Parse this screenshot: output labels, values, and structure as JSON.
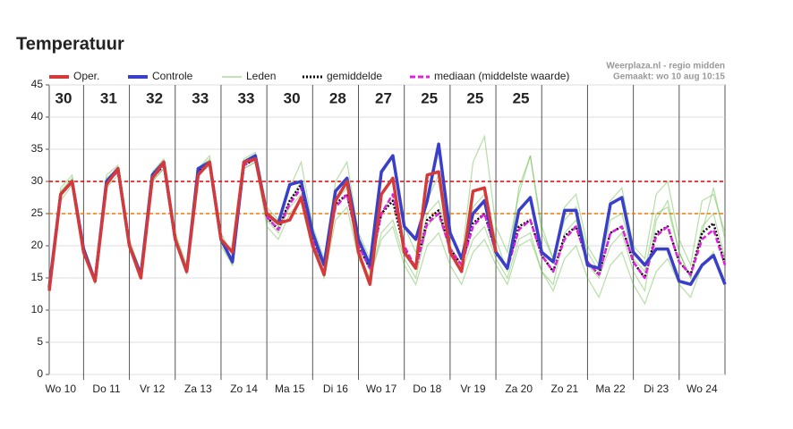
{
  "chart_data": {
    "type": "line",
    "title": "Temperatuur",
    "credit": [
      "Weerplaza.nl - regio midden",
      "Gemaakt: wo 10 aug 10:15"
    ],
    "x": [
      0.25,
      0.5,
      0.75,
      1,
      1.25,
      1.5,
      1.75,
      2,
      2.25,
      2.5,
      2.75,
      3,
      3.25,
      3.5,
      3.75,
      4,
      4.25,
      4.5,
      4.75,
      5,
      5.25,
      5.5,
      5.75,
      6,
      6.25,
      6.5,
      6.75,
      7,
      7.25,
      7.5,
      7.75,
      8,
      8.25,
      8.5,
      8.75,
      9,
      9.25,
      9.5,
      9.75,
      10,
      10.25,
      10.5,
      10.75,
      11,
      11.25,
      11.5,
      11.75,
      12,
      12.25,
      12.5,
      12.75,
      13,
      13.25,
      13.5,
      13.75,
      14,
      14.25,
      14.5,
      14.75,
      15
    ],
    "xlim": [
      0.25,
      15
    ],
    "xticks": [
      {
        "value": 0.5,
        "label": "Wo 10"
      },
      {
        "value": 1.5,
        "label": "Do 11"
      },
      {
        "value": 2.5,
        "label": "Vr 12"
      },
      {
        "value": 3.5,
        "label": "Za 13"
      },
      {
        "value": 4.5,
        "label": "Zo 14"
      },
      {
        "value": 5.5,
        "label": "Ma 15"
      },
      {
        "value": 6.5,
        "label": "Di 16"
      },
      {
        "value": 7.5,
        "label": "Wo 17"
      },
      {
        "value": 8.5,
        "label": "Do 18"
      },
      {
        "value": 9.5,
        "label": "Vr 19"
      },
      {
        "value": 10.5,
        "label": "Za 20"
      },
      {
        "value": 11.5,
        "label": "Zo 21"
      },
      {
        "value": 12.5,
        "label": "Ma 22"
      },
      {
        "value": 13.5,
        "label": "Di 23"
      },
      {
        "value": 14.5,
        "label": "Wo 24"
      }
    ],
    "xgrid": [
      1,
      2,
      3,
      4,
      5,
      6,
      7,
      8,
      9,
      10,
      11,
      12,
      13,
      14
    ],
    "ylim": [
      0,
      45
    ],
    "yticks": [
      0,
      5,
      10,
      15,
      20,
      25,
      30,
      35,
      40,
      45
    ],
    "reference_lines": [
      {
        "value": 30,
        "color": "#e00000"
      },
      {
        "value": 25,
        "color": "#f07800"
      }
    ],
    "max_labels": {
      "x": [
        0,
        1,
        2,
        3,
        4,
        5,
        6,
        7,
        8,
        9,
        10
      ],
      "values": [
        30,
        31,
        32,
        33,
        33,
        30,
        28,
        27,
        25,
        25,
        25
      ],
      "color": "#e00000"
    },
    "series": [
      {
        "name": "Leden",
        "color": "#5cb83a",
        "members": [
          [
            14,
            29,
            31,
            20,
            15,
            31,
            32.5,
            21,
            16,
            31.5,
            33.5,
            22,
            17,
            32,
            34,
            22,
            18.5,
            33.5,
            34.5,
            26,
            24,
            29,
            33,
            23,
            18,
            30,
            33,
            22,
            18,
            31,
            34,
            23,
            19,
            27,
            31,
            22,
            18,
            33,
            37,
            23,
            19,
            28,
            34,
            23,
            18,
            26,
            28,
            20,
            17,
            27,
            29,
            20,
            18,
            28,
            30,
            21,
            17,
            27,
            28,
            22
          ],
          [
            13,
            27,
            29.5,
            19,
            14,
            29,
            31,
            19.5,
            15,
            30,
            32,
            20.5,
            15.5,
            31,
            32.5,
            20,
            17,
            32,
            33,
            23,
            21,
            25,
            27,
            20,
            15,
            24,
            26,
            18,
            15,
            21,
            23,
            17,
            14,
            20,
            22,
            17,
            14,
            19,
            21,
            17,
            14,
            20,
            21,
            16,
            13,
            18,
            20,
            15,
            12,
            17,
            19,
            14,
            11,
            16,
            18,
            14,
            12,
            17,
            19,
            14
          ],
          [
            13.5,
            28.5,
            30.5,
            19.5,
            14.5,
            30.5,
            32,
            20,
            15,
            31,
            33,
            21,
            16,
            32,
            33.5,
            21,
            18,
            33,
            34,
            25,
            23,
            27,
            30,
            21,
            16,
            27,
            29,
            20,
            16,
            25,
            28,
            19,
            17,
            25,
            27,
            20,
            17,
            26,
            28,
            21,
            16,
            29,
            34,
            22,
            18,
            24,
            26,
            19,
            16,
            24,
            25,
            18,
            16,
            25,
            26,
            19,
            15,
            23,
            25,
            18
          ],
          [
            13,
            28,
            30,
            19,
            14.5,
            29.5,
            31.5,
            20,
            15.5,
            30,
            32,
            21,
            16.5,
            31,
            33,
            21.5,
            17,
            32,
            33,
            24,
            22,
            26,
            28,
            20,
            17,
            26,
            28,
            19,
            15,
            22,
            24,
            18,
            15,
            23,
            25,
            19,
            16,
            21,
            23,
            18,
            15,
            21,
            22,
            16,
            14,
            22,
            24,
            17,
            15,
            20,
            22,
            16,
            13,
            24,
            27,
            19,
            15,
            22,
            29,
            21
          ]
        ]
      },
      {
        "name": "gemiddelde",
        "color": "#000000",
        "dash": "2 2",
        "values": [
          13.5,
          28,
          30,
          19.5,
          14.5,
          30,
          31.5,
          20,
          15.5,
          30.5,
          32.5,
          21,
          16,
          31.5,
          33,
          21,
          17.5,
          32.5,
          33.5,
          24.5,
          22.5,
          27,
          29.5,
          21,
          17,
          26.5,
          28,
          20,
          16.5,
          25,
          27,
          19.5,
          16.5,
          24,
          25.5,
          19.5,
          17,
          23.5,
          25,
          19,
          16.5,
          23,
          24,
          18.5,
          16,
          21.5,
          23,
          17.5,
          15.5,
          22,
          23,
          17.5,
          15,
          22,
          23,
          17.5,
          15.5,
          22,
          23.5,
          17
        ]
      },
      {
        "name": "mediaan (middelste waarde)",
        "color": "#e020e0",
        "dash": "6 3",
        "values": [
          13.5,
          28,
          30,
          19.5,
          14.5,
          30,
          31.5,
          20,
          15.5,
          30.5,
          32.5,
          21,
          16,
          31.5,
          33,
          21,
          17.5,
          32.5,
          33.5,
          24.5,
          22.5,
          26.5,
          29,
          21,
          17,
          26,
          28,
          20,
          16.5,
          25,
          28,
          20,
          16.5,
          23.5,
          25,
          19.5,
          17,
          23,
          25,
          19,
          16.5,
          22.5,
          24,
          18.5,
          16,
          21,
          23,
          17.5,
          15.5,
          22,
          23,
          17.5,
          15,
          21.5,
          23,
          17.5,
          15.5,
          21,
          22.5,
          17
        ]
      },
      {
        "name": "Controle",
        "color": "#3a3fc8",
        "values": [
          13.5,
          28,
          30,
          19.5,
          14.5,
          30,
          32,
          20,
          15.5,
          31,
          33,
          21,
          16,
          32,
          33,
          21,
          17.5,
          33,
          34,
          25,
          23.5,
          29.5,
          30,
          22,
          17,
          28.5,
          30.5,
          21,
          17,
          31.5,
          34,
          23,
          21,
          27,
          35.8,
          22,
          18,
          25,
          27,
          19,
          16.5,
          25.5,
          27.5,
          19,
          17.5,
          25.5,
          25.5,
          17,
          16.5,
          26.5,
          27.5,
          19,
          17,
          19.5,
          19.5,
          14.5,
          14,
          17,
          18.5,
          14
        ]
      },
      {
        "name": "Oper.",
        "color": "#d43a3a",
        "values": [
          13,
          28,
          30,
          19,
          14.5,
          29.5,
          32,
          20,
          15,
          30.5,
          33,
          21,
          16,
          31,
          33,
          21,
          19,
          33,
          33.5,
          25,
          23.5,
          24,
          27.5,
          20,
          15.5,
          27,
          30,
          19,
          14,
          28,
          30.5,
          19,
          16.5,
          31,
          31.5,
          19,
          16,
          28.5,
          29,
          19,
          null,
          null,
          null,
          null,
          null,
          null,
          null,
          null,
          null,
          null,
          null,
          null,
          null,
          null,
          null,
          null,
          null,
          null,
          null,
          null
        ]
      }
    ]
  }
}
